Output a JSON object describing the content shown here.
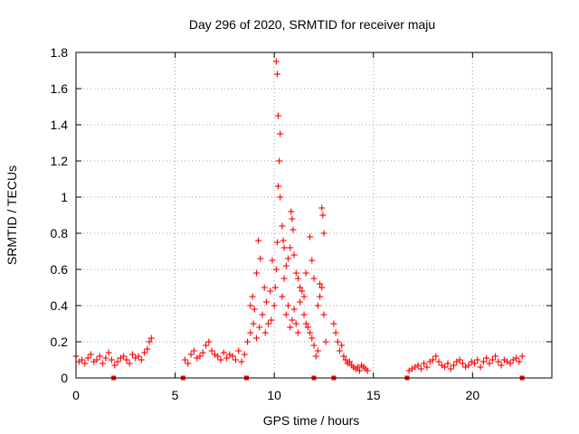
{
  "chart_data": {
    "type": "scatter",
    "title": "Day 296 of 2020, SRMTID for receiver maju",
    "xlabel": "GPS time / hours",
    "ylabel": "SRMTID / TECUs",
    "xlim": [
      0,
      24
    ],
    "ylim": [
      0,
      1.8
    ],
    "x_ticks": [
      0,
      5,
      10,
      15,
      20
    ],
    "x_tick_labels": [
      "0",
      "5",
      "10",
      "15",
      "20"
    ],
    "y_ticks": [
      0,
      0.2,
      0.4,
      0.6,
      0.8,
      1.0,
      1.2,
      1.4,
      1.6,
      1.8
    ],
    "y_tick_labels": [
      "0",
      "0.2",
      "0.4",
      "0.6",
      "0.8",
      "1",
      "1.2",
      "1.4",
      "1.6",
      "1.8"
    ],
    "grid": true,
    "series_color": "#ff0000",
    "series": [
      {
        "name": "SRMTID",
        "marker": "plus",
        "x": [
          0.0,
          0.15,
          0.3,
          0.45,
          0.6,
          0.75,
          0.9,
          1.05,
          1.2,
          1.35,
          1.5,
          1.65,
          1.8,
          1.95,
          2.1,
          2.25,
          2.4,
          2.55,
          2.7,
          2.85,
          3.0,
          3.15,
          3.3,
          3.45,
          3.6,
          3.7,
          3.8,
          5.5,
          5.65,
          5.8,
          5.95,
          6.1,
          6.25,
          6.4,
          6.55,
          6.7,
          6.85,
          7.0,
          7.15,
          7.3,
          7.45,
          7.6,
          7.75,
          7.9,
          8.05,
          8.2,
          8.35,
          8.5,
          8.65,
          8.8,
          8.95,
          9.1,
          9.25,
          9.4,
          9.55,
          9.7,
          9.85,
          10.0,
          10.05,
          10.1,
          10.15,
          10.2,
          10.25,
          10.3,
          10.4,
          10.5,
          10.6,
          10.7,
          10.8,
          10.9,
          11.0,
          11.1,
          11.2,
          11.3,
          11.4,
          11.5,
          11.6,
          11.7,
          11.8,
          11.9,
          12.0,
          12.1,
          12.2,
          12.3,
          12.4,
          12.5,
          12.6,
          13.0,
          13.1,
          13.2,
          13.3,
          13.4,
          13.5,
          13.6,
          13.7,
          13.8,
          13.9,
          14.0,
          14.1,
          14.2,
          14.3,
          14.4,
          14.5,
          14.6,
          14.7,
          16.8,
          16.95,
          17.1,
          17.25,
          17.4,
          17.55,
          17.7,
          17.85,
          18.0,
          18.15,
          18.3,
          18.45,
          18.6,
          18.75,
          18.9,
          19.05,
          19.2,
          19.35,
          19.5,
          19.65,
          19.8,
          19.95,
          20.1,
          20.25,
          20.4,
          20.55,
          20.7,
          20.85,
          21.0,
          21.15,
          21.3,
          21.45,
          21.6,
          21.75,
          21.9,
          22.05,
          22.2,
          22.35,
          22.5,
          8.8,
          8.9,
          9.0,
          9.1,
          9.2,
          9.3,
          9.5,
          9.6,
          9.8,
          9.9,
          10.1,
          10.15,
          10.2,
          10.3,
          10.4,
          10.45,
          10.5,
          10.6,
          10.7,
          10.8,
          10.85,
          10.9,
          10.95,
          11.0,
          11.1,
          11.2,
          11.3,
          11.5,
          11.6,
          11.8,
          11.9,
          12.0,
          12.2,
          12.3,
          12.4,
          12.45,
          12.5
        ],
        "y": [
          0.12,
          0.09,
          0.1,
          0.08,
          0.11,
          0.13,
          0.09,
          0.1,
          0.12,
          0.08,
          0.11,
          0.14,
          0.1,
          0.07,
          0.09,
          0.11,
          0.12,
          0.1,
          0.08,
          0.13,
          0.11,
          0.12,
          0.1,
          0.14,
          0.16,
          0.2,
          0.22,
          0.1,
          0.08,
          0.13,
          0.15,
          0.11,
          0.12,
          0.14,
          0.18,
          0.2,
          0.15,
          0.13,
          0.12,
          0.1,
          0.14,
          0.11,
          0.13,
          0.12,
          0.1,
          0.15,
          0.09,
          0.13,
          0.2,
          0.25,
          0.3,
          0.22,
          0.28,
          0.35,
          0.25,
          0.3,
          0.32,
          0.4,
          0.5,
          0.6,
          0.75,
          1.06,
          1.2,
          1.35,
          0.45,
          0.55,
          0.35,
          0.4,
          0.28,
          0.32,
          0.38,
          0.3,
          0.25,
          0.42,
          0.48,
          0.35,
          0.3,
          0.28,
          0.25,
          0.22,
          0.18,
          0.12,
          0.15,
          0.45,
          0.5,
          0.35,
          0.2,
          0.3,
          0.25,
          0.2,
          0.15,
          0.18,
          0.12,
          0.1,
          0.08,
          0.09,
          0.07,
          0.06,
          0.05,
          0.06,
          0.04,
          0.07,
          0.06,
          0.05,
          0.04,
          0.04,
          0.05,
          0.06,
          0.07,
          0.05,
          0.08,
          0.06,
          0.09,
          0.1,
          0.12,
          0.09,
          0.07,
          0.06,
          0.08,
          0.05,
          0.07,
          0.09,
          0.1,
          0.08,
          0.06,
          0.07,
          0.09,
          0.08,
          0.1,
          0.06,
          0.09,
          0.11,
          0.08,
          0.1,
          0.12,
          0.09,
          0.07,
          0.1,
          0.09,
          0.08,
          0.1,
          0.11,
          0.09,
          0.12,
          0.4,
          0.45,
          0.38,
          0.58,
          0.76,
          0.66,
          0.5,
          0.42,
          0.48,
          0.65,
          1.75,
          1.68,
          1.45,
          1.0,
          0.84,
          0.76,
          0.72,
          0.62,
          0.66,
          0.72,
          0.92,
          0.88,
          0.82,
          0.68,
          0.58,
          0.55,
          0.5,
          0.45,
          0.58,
          0.78,
          0.65,
          0.55,
          0.4,
          0.52,
          0.94,
          0.9,
          0.8
        ]
      }
    ],
    "axis_markers_x": [
      1.9,
      5.4,
      8.6,
      12.0,
      13.0,
      16.7,
      22.5
    ]
  }
}
